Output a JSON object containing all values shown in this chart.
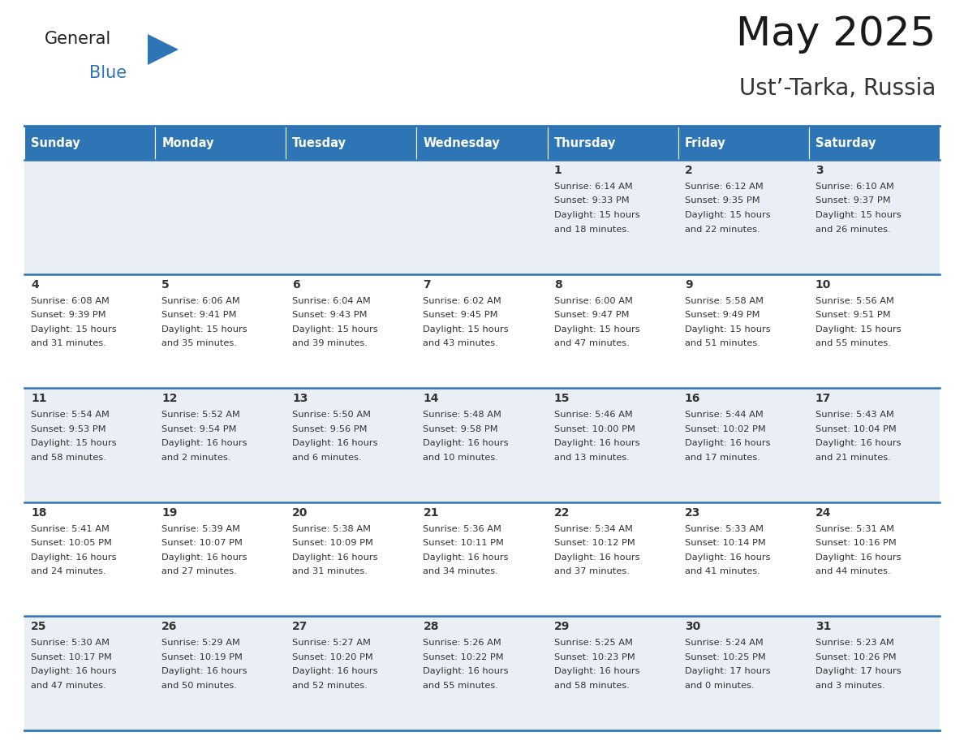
{
  "title": "May 2025",
  "subtitle": "Ust’-Tarka, Russia",
  "header_color": "#2E75B6",
  "header_text_color": "#FFFFFF",
  "odd_row_bg": "#EAEFF5",
  "even_row_bg": "#FFFFFF",
  "line_color": "#2E75B6",
  "text_color": "#333333",
  "days_of_week": [
    "Sunday",
    "Monday",
    "Tuesday",
    "Wednesday",
    "Thursday",
    "Friday",
    "Saturday"
  ],
  "logo_general_color": "#222222",
  "logo_blue_color": "#2E75B6",
  "logo_triangle_color": "#2E75B6",
  "title_fontsize": 36,
  "subtitle_fontsize": 20,
  "weeks": [
    [
      {
        "day": "",
        "sunrise": "",
        "sunset": "",
        "daylight": ""
      },
      {
        "day": "",
        "sunrise": "",
        "sunset": "",
        "daylight": ""
      },
      {
        "day": "",
        "sunrise": "",
        "sunset": "",
        "daylight": ""
      },
      {
        "day": "",
        "sunrise": "",
        "sunset": "",
        "daylight": ""
      },
      {
        "day": "1",
        "sunrise": "6:14 AM",
        "sunset": "9:33 PM",
        "daylight": "15 hours\nand 18 minutes."
      },
      {
        "day": "2",
        "sunrise": "6:12 AM",
        "sunset": "9:35 PM",
        "daylight": "15 hours\nand 22 minutes."
      },
      {
        "day": "3",
        "sunrise": "6:10 AM",
        "sunset": "9:37 PM",
        "daylight": "15 hours\nand 26 minutes."
      }
    ],
    [
      {
        "day": "4",
        "sunrise": "6:08 AM",
        "sunset": "9:39 PM",
        "daylight": "15 hours\nand 31 minutes."
      },
      {
        "day": "5",
        "sunrise": "6:06 AM",
        "sunset": "9:41 PM",
        "daylight": "15 hours\nand 35 minutes."
      },
      {
        "day": "6",
        "sunrise": "6:04 AM",
        "sunset": "9:43 PM",
        "daylight": "15 hours\nand 39 minutes."
      },
      {
        "day": "7",
        "sunrise": "6:02 AM",
        "sunset": "9:45 PM",
        "daylight": "15 hours\nand 43 minutes."
      },
      {
        "day": "8",
        "sunrise": "6:00 AM",
        "sunset": "9:47 PM",
        "daylight": "15 hours\nand 47 minutes."
      },
      {
        "day": "9",
        "sunrise": "5:58 AM",
        "sunset": "9:49 PM",
        "daylight": "15 hours\nand 51 minutes."
      },
      {
        "day": "10",
        "sunrise": "5:56 AM",
        "sunset": "9:51 PM",
        "daylight": "15 hours\nand 55 minutes."
      }
    ],
    [
      {
        "day": "11",
        "sunrise": "5:54 AM",
        "sunset": "9:53 PM",
        "daylight": "15 hours\nand 58 minutes."
      },
      {
        "day": "12",
        "sunrise": "5:52 AM",
        "sunset": "9:54 PM",
        "daylight": "16 hours\nand 2 minutes."
      },
      {
        "day": "13",
        "sunrise": "5:50 AM",
        "sunset": "9:56 PM",
        "daylight": "16 hours\nand 6 minutes."
      },
      {
        "day": "14",
        "sunrise": "5:48 AM",
        "sunset": "9:58 PM",
        "daylight": "16 hours\nand 10 minutes."
      },
      {
        "day": "15",
        "sunrise": "5:46 AM",
        "sunset": "10:00 PM",
        "daylight": "16 hours\nand 13 minutes."
      },
      {
        "day": "16",
        "sunrise": "5:44 AM",
        "sunset": "10:02 PM",
        "daylight": "16 hours\nand 17 minutes."
      },
      {
        "day": "17",
        "sunrise": "5:43 AM",
        "sunset": "10:04 PM",
        "daylight": "16 hours\nand 21 minutes."
      }
    ],
    [
      {
        "day": "18",
        "sunrise": "5:41 AM",
        "sunset": "10:05 PM",
        "daylight": "16 hours\nand 24 minutes."
      },
      {
        "day": "19",
        "sunrise": "5:39 AM",
        "sunset": "10:07 PM",
        "daylight": "16 hours\nand 27 minutes."
      },
      {
        "day": "20",
        "sunrise": "5:38 AM",
        "sunset": "10:09 PM",
        "daylight": "16 hours\nand 31 minutes."
      },
      {
        "day": "21",
        "sunrise": "5:36 AM",
        "sunset": "10:11 PM",
        "daylight": "16 hours\nand 34 minutes."
      },
      {
        "day": "22",
        "sunrise": "5:34 AM",
        "sunset": "10:12 PM",
        "daylight": "16 hours\nand 37 minutes."
      },
      {
        "day": "23",
        "sunrise": "5:33 AM",
        "sunset": "10:14 PM",
        "daylight": "16 hours\nand 41 minutes."
      },
      {
        "day": "24",
        "sunrise": "5:31 AM",
        "sunset": "10:16 PM",
        "daylight": "16 hours\nand 44 minutes."
      }
    ],
    [
      {
        "day": "25",
        "sunrise": "5:30 AM",
        "sunset": "10:17 PM",
        "daylight": "16 hours\nand 47 minutes."
      },
      {
        "day": "26",
        "sunrise": "5:29 AM",
        "sunset": "10:19 PM",
        "daylight": "16 hours\nand 50 minutes."
      },
      {
        "day": "27",
        "sunrise": "5:27 AM",
        "sunset": "10:20 PM",
        "daylight": "16 hours\nand 52 minutes."
      },
      {
        "day": "28",
        "sunrise": "5:26 AM",
        "sunset": "10:22 PM",
        "daylight": "16 hours\nand 55 minutes."
      },
      {
        "day": "29",
        "sunrise": "5:25 AM",
        "sunset": "10:23 PM",
        "daylight": "16 hours\nand 58 minutes."
      },
      {
        "day": "30",
        "sunrise": "5:24 AM",
        "sunset": "10:25 PM",
        "daylight": "17 hours\nand 0 minutes."
      },
      {
        "day": "31",
        "sunrise": "5:23 AM",
        "sunset": "10:26 PM",
        "daylight": "17 hours\nand 3 minutes."
      }
    ]
  ]
}
